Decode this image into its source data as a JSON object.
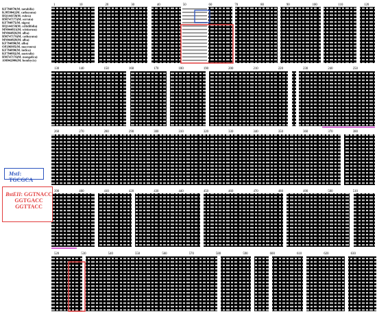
{
  "species": [
    "KF784870(M. notabilis)",
    "KJ859042(M. cathayana)",
    "HQ144158(M. rubra)",
    "HM747175(M. serrata)",
    "KF784875(M. nigra)",
    "HQ144150(M. celtidifolia)",
    "MN044831(M. wittiorum)",
    "MN044826(M. alba)",
    "HM747176(M. cathayana)",
    "MN044828(M. alba)",
    "KF784890(M. alba)",
    "OP296995(M. macroura)",
    "KF784890(M. indica)",
    "KF784892(M. australis)",
    "HM747176(M. mongolica)",
    "AM042006(M. bombycis)"
  ],
  "ruler": {
    "block1": [
      "1",
      "10",
      "20",
      "30",
      "40",
      "50",
      "60",
      "70",
      "80",
      "90",
      "100",
      "110",
      "120"
    ],
    "block2": [
      "130",
      "140",
      "150",
      "160",
      "170",
      "180",
      "190",
      "200",
      "210",
      "220",
      "230",
      "240",
      "250"
    ],
    "block3": [
      "260",
      "270",
      "280",
      "290",
      "300",
      "310",
      "320",
      "330",
      "340",
      "350",
      "360",
      "370",
      "380"
    ],
    "block4": [
      "390",
      "400",
      "410",
      "420",
      "430",
      "440",
      "450",
      "460",
      "470",
      "480",
      "490",
      "500",
      "510"
    ],
    "block5": [
      "520",
      "530",
      "540",
      "550",
      "560",
      "570",
      "580",
      "590",
      "600",
      "610",
      "620",
      "630"
    ]
  },
  "msti": {
    "name": "MstI",
    "site": ": TGCGCA"
  },
  "bsteii": {
    "name": "BstEII",
    "site": ": GGTNACC",
    "variants": [
      "GGTGACC",
      "GGTTACC"
    ]
  },
  "colors": {
    "alignment_bg": "#000000",
    "highlight_text": "#ffffff",
    "msti": "#2a52be",
    "bsteii": "#e23b3b",
    "underline": "#cc33cc"
  }
}
